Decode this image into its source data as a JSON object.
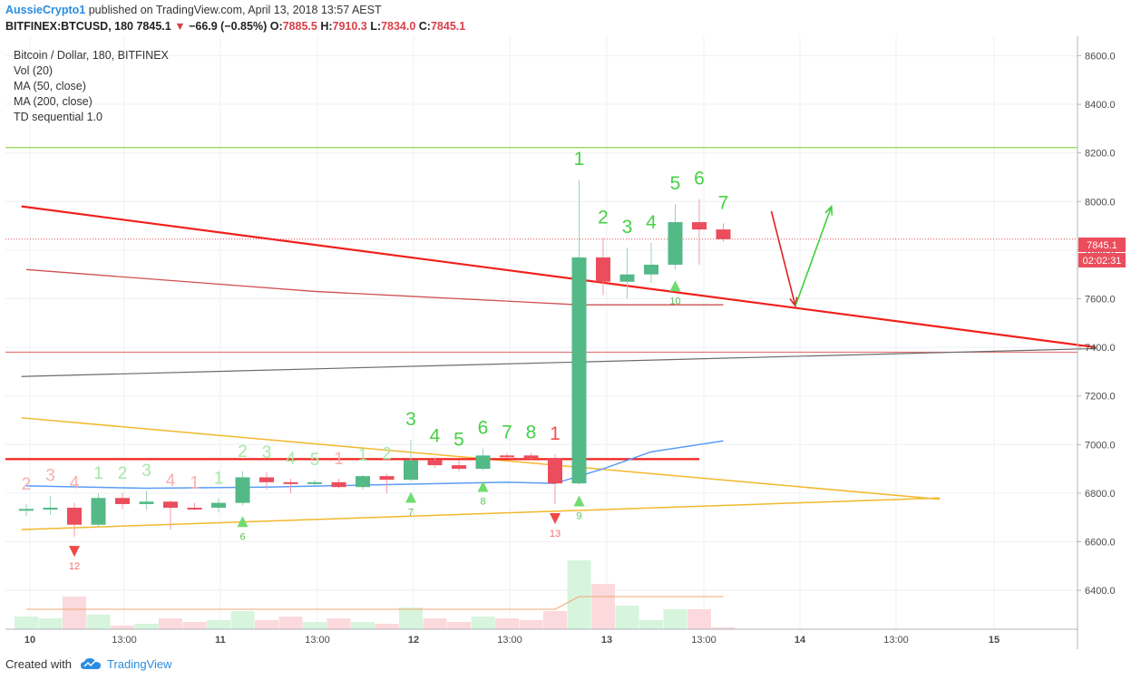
{
  "header": {
    "author": "AussieCrypto1",
    "published": " published on TradingView.com, April 13, 2018 13:57 AEST",
    "symbol": "BITFINEX:BTCUSD, 180",
    "last": "7845.1",
    "change": "−66.9 (−0.85%)",
    "o_label": "O:",
    "o_val": "7885.5",
    "h_label": "H:",
    "h_val": "7910.3",
    "l_label": "L:",
    "l_val": "7834.0",
    "c_label": "C:",
    "c_val": "7845.1"
  },
  "legend": {
    "title": "Bitcoin / Dollar, 180, BITFINEX",
    "vol": "Vol (20)",
    "ma50": "MA (50, close)",
    "ma200": "MA (200, close)",
    "td": "TD sequential 1.0"
  },
  "price_tag": {
    "price": "7845.1",
    "countdown": "02:02:31"
  },
  "footer": {
    "created": "Created with",
    "brand": "TradingView"
  },
  "colors": {
    "up": "#53b987",
    "down": "#eb4d5c",
    "trendline": "#f0201c",
    "ma50": "#5b9cf6",
    "ma200": "#d05050",
    "triangle": "#f2b82c",
    "horizontal": "#8bd450",
    "grid": "#eef1f5"
  },
  "chart_data": {
    "type": "candlestick",
    "title": "Bitcoin / Dollar, 180, BITFINEX",
    "ylim": [
      6240,
      8680
    ],
    "y_ticks": [
      "8600.0",
      "8400.0",
      "8200.0",
      "8000.0",
      "7800.0",
      "7600.0",
      "7400.0",
      "7200.0",
      "7000.0",
      "6800.0",
      "6600.0",
      "6400.0"
    ],
    "x_tick_labels": [
      "10",
      "13:00",
      "11",
      "13:00",
      "12",
      "13:00",
      "13",
      "13:00",
      "14",
      "13:00",
      "15"
    ],
    "candles": [
      {
        "o": 6735,
        "h": 6755,
        "l": 6705,
        "c": 6735
      },
      {
        "o": 6735,
        "h": 6790,
        "l": 6710,
        "c": 6740
      },
      {
        "o": 6740,
        "h": 6760,
        "l": 6620,
        "c": 6670
      },
      {
        "o": 6670,
        "h": 6800,
        "l": 6660,
        "c": 6780
      },
      {
        "o": 6780,
        "h": 6800,
        "l": 6735,
        "c": 6755
      },
      {
        "o": 6755,
        "h": 6810,
        "l": 6730,
        "c": 6765
      },
      {
        "o": 6765,
        "h": 6770,
        "l": 6650,
        "c": 6740
      },
      {
        "o": 6740,
        "h": 6760,
        "l": 6730,
        "c": 6735
      },
      {
        "o": 6740,
        "h": 6780,
        "l": 6720,
        "c": 6760
      },
      {
        "o": 6760,
        "h": 6890,
        "l": 6750,
        "c": 6865
      },
      {
        "o": 6865,
        "h": 6885,
        "l": 6815,
        "c": 6845
      },
      {
        "o": 6845,
        "h": 6860,
        "l": 6800,
        "c": 6840
      },
      {
        "o": 6840,
        "h": 6855,
        "l": 6830,
        "c": 6845
      },
      {
        "o": 6845,
        "h": 6860,
        "l": 6820,
        "c": 6825
      },
      {
        "o": 6825,
        "h": 6875,
        "l": 6815,
        "c": 6870
      },
      {
        "o": 6870,
        "h": 6880,
        "l": 6800,
        "c": 6855
      },
      {
        "o": 6855,
        "h": 7020,
        "l": 6850,
        "c": 6935
      },
      {
        "o": 6935,
        "h": 6950,
        "l": 6905,
        "c": 6915
      },
      {
        "o": 6915,
        "h": 6935,
        "l": 6890,
        "c": 6900
      },
      {
        "o": 6900,
        "h": 6985,
        "l": 6895,
        "c": 6955
      },
      {
        "o": 6955,
        "h": 6965,
        "l": 6945,
        "c": 6950
      },
      {
        "o": 6955,
        "h": 6965,
        "l": 6940,
        "c": 6945
      },
      {
        "o": 6945,
        "h": 6960,
        "l": 6755,
        "c": 6840
      },
      {
        "o": 6840,
        "h": 8090,
        "l": 6835,
        "c": 7770
      },
      {
        "o": 7770,
        "h": 7850,
        "l": 7615,
        "c": 7670
      },
      {
        "o": 7670,
        "h": 7810,
        "l": 7600,
        "c": 7700
      },
      {
        "o": 7700,
        "h": 7830,
        "l": 7665,
        "c": 7740
      },
      {
        "o": 7740,
        "h": 7990,
        "l": 7720,
        "c": 7915
      },
      {
        "o": 7915,
        "h": 8010,
        "l": 7740,
        "c": 7885
      },
      {
        "o": 7885,
        "h": 7910,
        "l": 7834,
        "c": 7845.1
      }
    ],
    "volume": [
      0.35,
      0.3,
      0.9,
      0.4,
      0.1,
      0.15,
      0.3,
      0.2,
      0.25,
      0.5,
      0.25,
      0.35,
      0.2,
      0.3,
      0.2,
      0.15,
      0.6,
      0.3,
      0.2,
      0.35,
      0.3,
      0.25,
      0.5,
      1.9,
      1.25,
      0.65,
      0.25,
      0.55,
      0.55,
      0.05
    ],
    "td_counts": [
      {
        "i": 0,
        "label": "2",
        "up": false,
        "faded": true
      },
      {
        "i": 1,
        "label": "3",
        "up": false,
        "faded": true
      },
      {
        "i": 2,
        "label": "4",
        "up": false,
        "faded": true
      },
      {
        "i": 3,
        "label": "1",
        "up": true,
        "faded": true
      },
      {
        "i": 4,
        "label": "2",
        "up": true,
        "faded": true
      },
      {
        "i": 5,
        "label": "3",
        "up": true,
        "faded": true
      },
      {
        "i": 6,
        "label": "4",
        "up": false,
        "faded": true
      },
      {
        "i": 7,
        "label": "1",
        "up": false,
        "faded": true
      },
      {
        "i": 8,
        "label": "1",
        "up": true,
        "faded": true
      },
      {
        "i": 9,
        "label": "2",
        "up": true,
        "faded": true
      },
      {
        "i": 10,
        "label": "3",
        "up": true,
        "faded": true
      },
      {
        "i": 11,
        "label": "4",
        "up": true,
        "faded": true
      },
      {
        "i": 12,
        "label": "5",
        "up": true,
        "faded": true
      },
      {
        "i": 13,
        "label": "1",
        "up": false,
        "faded": true
      },
      {
        "i": 14,
        "label": "1",
        "up": true,
        "faded": true
      },
      {
        "i": 15,
        "label": "2",
        "up": true,
        "faded": true
      },
      {
        "i": 16,
        "label": "3",
        "up": true,
        "faded": false
      },
      {
        "i": 17,
        "label": "4",
        "up": true,
        "faded": false
      },
      {
        "i": 18,
        "label": "5",
        "up": true,
        "faded": false
      },
      {
        "i": 19,
        "label": "6",
        "up": true,
        "faded": false
      },
      {
        "i": 20,
        "label": "7",
        "up": true,
        "faded": false
      },
      {
        "i": 21,
        "label": "8",
        "up": true,
        "faded": false
      },
      {
        "i": 22,
        "label": "1",
        "up": false,
        "faded": false
      },
      {
        "i": 23,
        "label": "1",
        "up": true,
        "faded": false
      },
      {
        "i": 24,
        "label": "2",
        "up": true,
        "faded": false
      },
      {
        "i": 25,
        "label": "3",
        "up": true,
        "faded": false
      },
      {
        "i": 26,
        "label": "4",
        "up": true,
        "faded": false
      },
      {
        "i": 27,
        "label": "5",
        "up": true,
        "faded": false
      },
      {
        "i": 28,
        "label": "6",
        "up": true,
        "faded": false
      },
      {
        "i": 29,
        "label": "7",
        "up": true,
        "faded": false
      }
    ],
    "td_markers": [
      {
        "i": 2,
        "label": "12",
        "dir": "down"
      },
      {
        "i": 9,
        "label": "6",
        "dir": "up"
      },
      {
        "i": 16,
        "label": "7",
        "dir": "up"
      },
      {
        "i": 19,
        "label": "8",
        "dir": "up"
      },
      {
        "i": 22,
        "label": "13",
        "dir": "down"
      },
      {
        "i": 23,
        "label": "9",
        "dir": "up"
      },
      {
        "i": 27,
        "label": "10",
        "dir": "up"
      }
    ],
    "ma50": [
      [
        0,
        6830
      ],
      [
        5,
        6820
      ],
      [
        10,
        6825
      ],
      [
        15,
        6835
      ],
      [
        20,
        6845
      ],
      [
        22,
        6840
      ],
      [
        24,
        6900
      ],
      [
        26,
        6970
      ],
      [
        29,
        7015
      ]
    ],
    "ma200": [
      [
        0,
        7720
      ],
      [
        8,
        7660
      ],
      [
        12,
        7630
      ],
      [
        16,
        7610
      ],
      [
        20,
        7590
      ],
      [
        23,
        7575
      ],
      [
        29,
        7575
      ]
    ],
    "drawings": {
      "red_trendline": [
        [
          -0.2,
          7980
        ],
        [
          44.5,
          7400
        ]
      ],
      "green_horizontal": 8222,
      "red_horizontal_long": 7380,
      "red_horizontal_short": {
        "from": 0,
        "to": 28,
        "y": 6940
      },
      "gray_line": [
        [
          -0.2,
          7280
        ],
        [
          44.5,
          7395
        ]
      ],
      "triangle_upper": [
        [
          -0.2,
          7110
        ],
        [
          38,
          6775
        ]
      ],
      "triangle_lower": [
        [
          -0.2,
          6650
        ],
        [
          38,
          6780
        ]
      ],
      "red_arrow": [
        [
          31,
          7960
        ],
        [
          32,
          7570
        ]
      ],
      "green_arrow": [
        [
          32,
          7570
        ],
        [
          33.5,
          7980
        ]
      ]
    }
  }
}
